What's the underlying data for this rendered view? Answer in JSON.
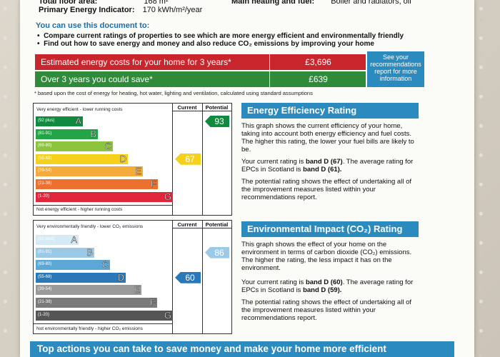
{
  "header": {
    "floor_area_label": "Total floor area:",
    "floor_area_value": "168 m²",
    "pei_label": "Primary Energy Indicator:",
    "pei_value": "170 kWh/m²/year",
    "heating_label": "Main heating and fuel:",
    "heating_value": "Boiler and radiators, oil"
  },
  "intro": {
    "title": "You can use this document to:",
    "bullet1": "Compare current ratings of properties to see which are more energy efficient and environmentally friendly",
    "bullet2": "Find out how to save energy and money and also reduce CO₂ emissions by improving your home"
  },
  "costs": {
    "row1_label": "Estimated energy costs for your home for 3 years*",
    "row1_value": "£3,696",
    "row2_label": "Over 3 years you could save*",
    "row2_value": "£639",
    "see_box": "See your recommendations report for more information",
    "footnote": "* based upon the cost of energy for heating, hot water, lighting and ventilation, calculated using standard assumptions",
    "colors": {
      "red": "#c8252c",
      "green": "#2f8a3a",
      "blue": "#2b8bbf"
    }
  },
  "energy_chart": {
    "top_label": "Very energy efficient - lower running costs",
    "bottom_label": "Not energy efficient - higher running costs",
    "current_header": "Current",
    "potential_header": "Potential",
    "current_value": 67,
    "current_text": "67",
    "current_band": "D",
    "potential_value": 93,
    "potential_text": "93",
    "potential_band": "A",
    "bands": [
      {
        "range": "(92 plus)",
        "letter": "A",
        "color": "#0f8a3f"
      },
      {
        "range": "(81-91)",
        "letter": "B",
        "color": "#23a446"
      },
      {
        "range": "(69-80)",
        "letter": "C",
        "color": "#8cc43e"
      },
      {
        "range": "(55-68)",
        "letter": "D",
        "color": "#f6d11b"
      },
      {
        "range": "(39-54)",
        "letter": "E",
        "color": "#f4ab3c"
      },
      {
        "range": "(21-38)",
        "letter": "F",
        "color": "#ec7130"
      },
      {
        "range": "(1-20)",
        "letter": "G",
        "color": "#e0263a"
      }
    ],
    "current_color": "#f6d11b",
    "potential_color": "#0f8a3f"
  },
  "energy_text": {
    "title": "Energy Efficiency Rating",
    "p1": "This graph shows the current efficiency of your home, taking into account both energy efficiency and fuel costs. The higher this rating, the lower your fuel bills are likely to be.",
    "p2_a": "Your current rating is ",
    "p2_b": "band D (67)",
    "p2_c": ". The average rating for EPCs in Scotland is ",
    "p2_d": "band D (61).",
    "p3": "The potential rating shows the effect of undertaking all of the improvement measures listed within your recommendations report."
  },
  "env_chart": {
    "top_label": "Very environmentally friendly - lower CO₂ emissions",
    "bottom_label": "Not environmentally friendly - higher CO₂ emissions",
    "current_header": "Current",
    "potential_header": "Potential",
    "current_value": 60,
    "current_text": "60",
    "current_band": "D",
    "potential_value": 86,
    "potential_text": "86",
    "potential_band": "B",
    "bands": [
      {
        "range": "(92 plus)",
        "letter": "A",
        "color": "#d6eaf6"
      },
      {
        "range": "(81-91)",
        "letter": "B",
        "color": "#9cc9e6"
      },
      {
        "range": "(69-80)",
        "letter": "C",
        "color": "#5ba8d6"
      },
      {
        "range": "(55-68)",
        "letter": "D",
        "color": "#2a78b8"
      },
      {
        "range": "(39-54)",
        "letter": "E",
        "color": "#9a9a9a"
      },
      {
        "range": "(21-38)",
        "letter": "F",
        "color": "#7a7a7a"
      },
      {
        "range": "(1-20)",
        "letter": "G",
        "color": "#555555"
      }
    ],
    "current_color": "#2a78b8",
    "potential_color": "#9cc9e6"
  },
  "env_text": {
    "title": "Environmental Impact (CO₂) Rating",
    "p1": "This graph shows the effect of your home on the environment in terms of carbon dioxide (CO₂) emissions. The higher the rating, the less impact it has on the environment.",
    "p2_a": "Your current rating is ",
    "p2_b": "band D (60)",
    "p2_c": ". The average rating for EPCs in Scotland is ",
    "p2_d": "band D (59).",
    "p3": "The potential rating shows the effect of undertaking all of the improvement measures listed within your recommendations report."
  },
  "bottom": {
    "banner": "Top actions you can take to save money and make your home more efficient"
  }
}
